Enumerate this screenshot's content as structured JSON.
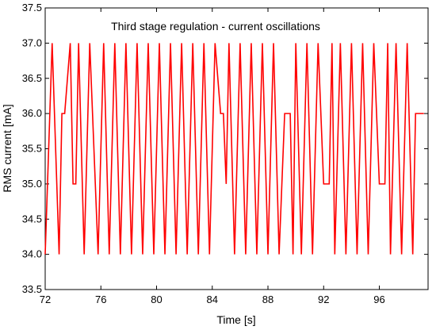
{
  "chart_data": {
    "type": "line",
    "title": "Third stage regulation - current oscillations",
    "xlabel": "Time [s]",
    "ylabel": "RMS current [mA]",
    "xlim": [
      72,
      99.5
    ],
    "ylim": [
      33.5,
      37.5
    ],
    "x_ticks": [
      "72",
      "76",
      "80",
      "84",
      "88",
      "92",
      "96"
    ],
    "y_ticks": [
      "33.5",
      "34.0",
      "34.5",
      "35.0",
      "35.5",
      "36.0",
      "36.5",
      "37.0",
      "37.5"
    ],
    "grid": false,
    "series": [
      {
        "color": "#ff0000",
        "x": [
          72.0,
          72.5,
          73.0,
          73.2,
          73.4,
          73.8,
          74.0,
          74.2,
          74.4,
          74.8,
          75.2,
          75.4,
          75.8,
          76.2,
          76.6,
          77.0,
          77.4,
          77.8,
          78.2,
          78.6,
          79.0,
          79.4,
          79.8,
          80.2,
          80.6,
          81.0,
          81.4,
          81.8,
          82.2,
          82.6,
          83.0,
          83.4,
          83.8,
          84.2,
          84.6,
          84.8,
          85.0,
          85.2,
          85.6,
          86.0,
          86.4,
          86.8,
          87.2,
          87.6,
          88.0,
          88.4,
          88.8,
          89.2,
          89.6,
          89.8,
          90.0,
          90.4,
          90.8,
          91.2,
          91.6,
          92.0,
          92.4,
          92.6,
          92.8,
          93.2,
          93.6,
          94.0,
          94.4,
          94.8,
          95.2,
          95.6,
          96.0,
          96.4,
          96.6,
          96.8,
          97.2,
          97.6,
          98.0,
          98.4,
          98.6,
          98.8,
          99.2
        ],
        "y": [
          34.0,
          37.0,
          34.0,
          36.0,
          36.0,
          37.0,
          35.0,
          35.0,
          37.0,
          34.0,
          37.0,
          36.0,
          34.0,
          37.0,
          34.0,
          37.0,
          34.0,
          37.0,
          34.0,
          37.0,
          34.0,
          37.0,
          34.0,
          37.0,
          34.0,
          37.0,
          34.0,
          37.0,
          34.0,
          37.0,
          34.0,
          37.0,
          34.0,
          37.0,
          36.0,
          36.0,
          35.0,
          37.0,
          34.0,
          37.0,
          34.0,
          37.0,
          34.0,
          37.0,
          34.0,
          37.0,
          34.0,
          36.0,
          36.0,
          34.0,
          37.0,
          34.0,
          37.0,
          34.0,
          37.0,
          35.0,
          35.0,
          37.0,
          34.0,
          37.0,
          34.0,
          37.0,
          34.0,
          37.0,
          34.0,
          37.0,
          35.0,
          35.0,
          37.0,
          34.0,
          37.0,
          34.0,
          37.0,
          34.0,
          36.0,
          36.0,
          36.0
        ]
      }
    ]
  }
}
